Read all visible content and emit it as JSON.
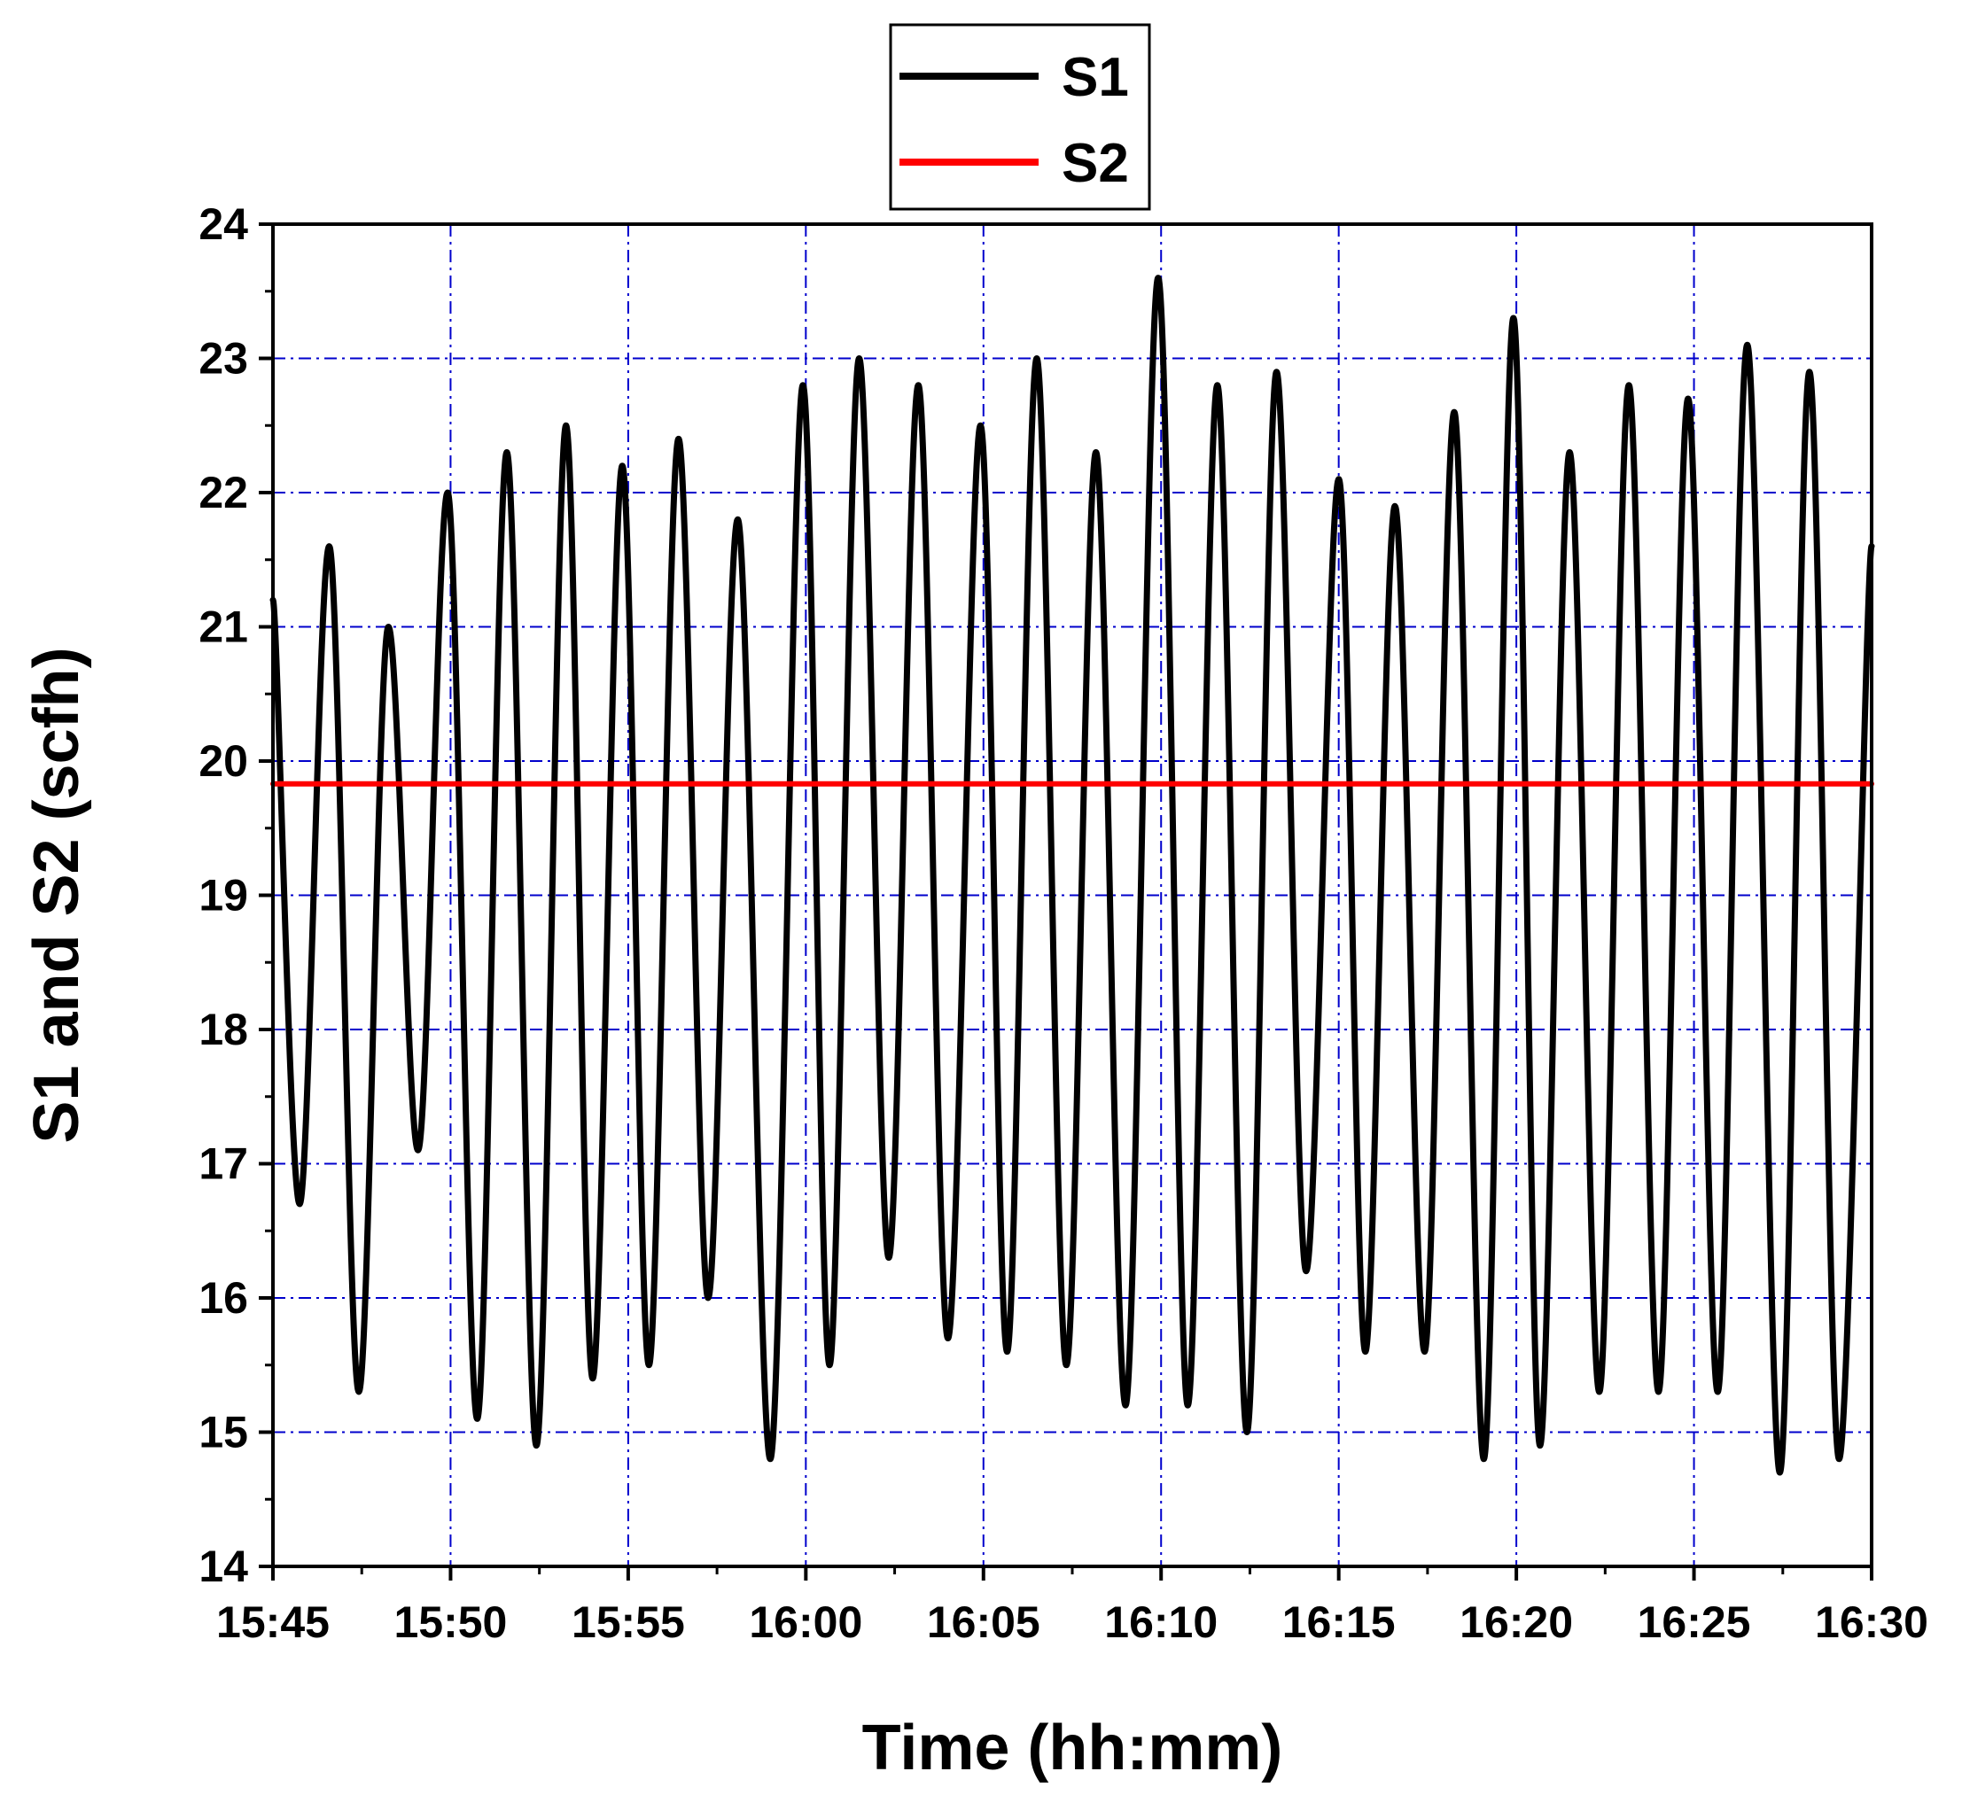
{
  "chart_data": {
    "type": "line",
    "title": "",
    "xlabel": "Time (hh:mm)",
    "ylabel": "S1 and S2 (scfh)",
    "x_tick_labels": [
      "15:45",
      "15:50",
      "15:55",
      "16:00",
      "16:05",
      "16:10",
      "16:15",
      "16:20",
      "16:25",
      "16:30"
    ],
    "x_tick_minutes": [
      0,
      5,
      10,
      15,
      20,
      25,
      30,
      35,
      40,
      45
    ],
    "xlim": [
      "15:45",
      "16:30"
    ],
    "ylim": [
      14,
      24
    ],
    "y_ticks": [
      14,
      15,
      16,
      17,
      18,
      19,
      20,
      21,
      22,
      23,
      24
    ],
    "y_tick_labels": [
      "14",
      "15",
      "16",
      "17",
      "18",
      "19",
      "20",
      "21",
      "22",
      "23",
      "24"
    ],
    "grid": true,
    "grid_color": "#0000cc",
    "legend_position": "top-center",
    "series": [
      {
        "name": "S1",
        "color": "#000000",
        "x": [
          "15:45:00",
          "15:45:45",
          "15:46:35",
          "15:47:25",
          "15:48:15",
          "15:49:05",
          "15:49:55",
          "15:50:45",
          "15:51:35",
          "15:52:25",
          "15:53:15",
          "15:54:00",
          "15:54:50",
          "15:55:35",
          "15:56:25",
          "15:57:15",
          "15:58:05",
          "15:59:00",
          "15:59:55",
          "16:00:40",
          "16:01:30",
          "16:02:20",
          "16:03:10",
          "16:04:00",
          "16:04:55",
          "16:05:40",
          "16:06:30",
          "16:07:20",
          "16:08:10",
          "16:09:00",
          "16:09:55",
          "16:10:45",
          "16:11:35",
          "16:12:25",
          "16:13:15",
          "16:14:05",
          "16:15:00",
          "16:15:45",
          "16:16:35",
          "16:17:25",
          "16:18:15",
          "16:19:05",
          "16:19:55",
          "16:20:40",
          "16:21:30",
          "16:22:20",
          "16:23:10",
          "16:24:00",
          "16:24:50",
          "16:25:40",
          "16:26:30",
          "16:27:25",
          "16:28:15",
          "16:29:05",
          "16:30:00"
        ],
        "values": [
          21.2,
          16.7,
          21.6,
          15.3,
          21.0,
          17.1,
          22.0,
          15.1,
          22.3,
          14.9,
          22.5,
          15.4,
          22.2,
          15.5,
          22.4,
          16.0,
          21.8,
          14.8,
          22.8,
          15.5,
          23.0,
          16.3,
          22.8,
          15.7,
          22.5,
          15.6,
          23.0,
          15.5,
          22.3,
          15.2,
          23.6,
          15.2,
          22.8,
          15.0,
          22.9,
          16.2,
          22.1,
          15.6,
          21.9,
          15.6,
          22.6,
          14.8,
          23.3,
          14.9,
          22.3,
          15.3,
          22.8,
          15.3,
          22.7,
          15.3,
          23.1,
          14.7,
          22.9,
          14.8,
          21.6
        ]
      },
      {
        "name": "S2",
        "color": "#ff0000",
        "x": [
          "15:45:00",
          "16:30:00"
        ],
        "values": [
          19.83,
          19.83
        ]
      }
    ]
  }
}
